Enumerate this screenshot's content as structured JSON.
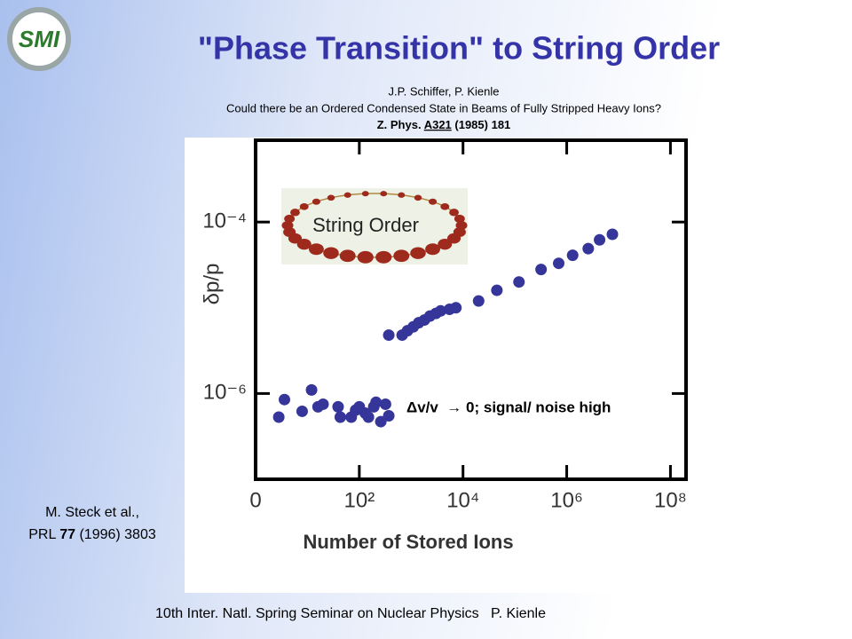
{
  "slide": {
    "logo": "SMI",
    "title": "\"Phase Transition\" to String Order",
    "reference": {
      "authors": "J.P. Schiffer, P. Kienle",
      "paper": "Could there be an Ordered Condensed State in Beams of Fully Stripped Heavy Ions?",
      "journal": [
        "Z. Phys. ",
        "A321",
        " (1985) 181"
      ]
    },
    "citation": {
      "line1": "M. Steck et al.,",
      "line2": [
        "PRL ",
        "77",
        " (1996) 3803"
      ]
    },
    "footer": "10th Inter. Natl. Spring Seminar on Nuclear Physics   P. Kienle",
    "inset": "String Order"
  },
  "chart_data": {
    "type": "scatter",
    "xlabel": "Number of Stored Ions",
    "ylabel": "δp/p",
    "annotation": "Δv/v  → 0; signal/ noise high",
    "x": [
      2.8,
      3.6,
      7.9,
      12,
      16,
      20,
      39,
      43,
      70,
      85,
      100,
      130,
      150,
      190,
      210,
      260,
      320,
      370,
      370,
      670,
      850,
      1100,
      1400,
      1800,
      2300,
      3000,
      3700,
      5500,
      7300,
      20000,
      45000,
      120000,
      320000,
      700000,
      1300000,
      2600000,
      4300000,
      7600000
    ],
    "values": [
      5.3e-07,
      8.5e-07,
      6.2e-07,
      1.1e-06,
      7e-07,
      7.5e-07,
      7e-07,
      5.3e-07,
      5.3e-07,
      6.4e-07,
      7e-07,
      5.9e-07,
      5.3e-07,
      7e-07,
      7.9e-07,
      4.7e-07,
      7.5e-07,
      5.5e-07,
      4.8e-06,
      4.8e-06,
      5.4e-06,
      6e-06,
      6.7e-06,
      7.2e-06,
      8e-06,
      8.6e-06,
      9.2e-06,
      9.6e-06,
      1e-05,
      1.2e-05,
      1.6e-05,
      2e-05,
      2.8e-05,
      3.3e-05,
      4.1e-05,
      4.9e-05,
      6.2e-05,
      7.2e-05
    ],
    "color": "#35359a",
    "xscale": "log",
    "yscale": "log",
    "xlim": [
      1,
      200000000
    ],
    "ylim": [
      1e-07,
      0.0009
    ],
    "xticks": [
      {
        "value": 1,
        "label": "0"
      },
      {
        "value": 100,
        "label": "10²"
      },
      {
        "value": 10000,
        "label": "10⁴"
      },
      {
        "value": 1000000,
        "label": "10⁶"
      },
      {
        "value": 100000000,
        "label": "10⁸"
      }
    ],
    "yticks": [
      {
        "value": 0.0001,
        "label": "10⁻⁴"
      },
      {
        "value": 1e-06,
        "label": "10⁻⁶"
      }
    ]
  }
}
